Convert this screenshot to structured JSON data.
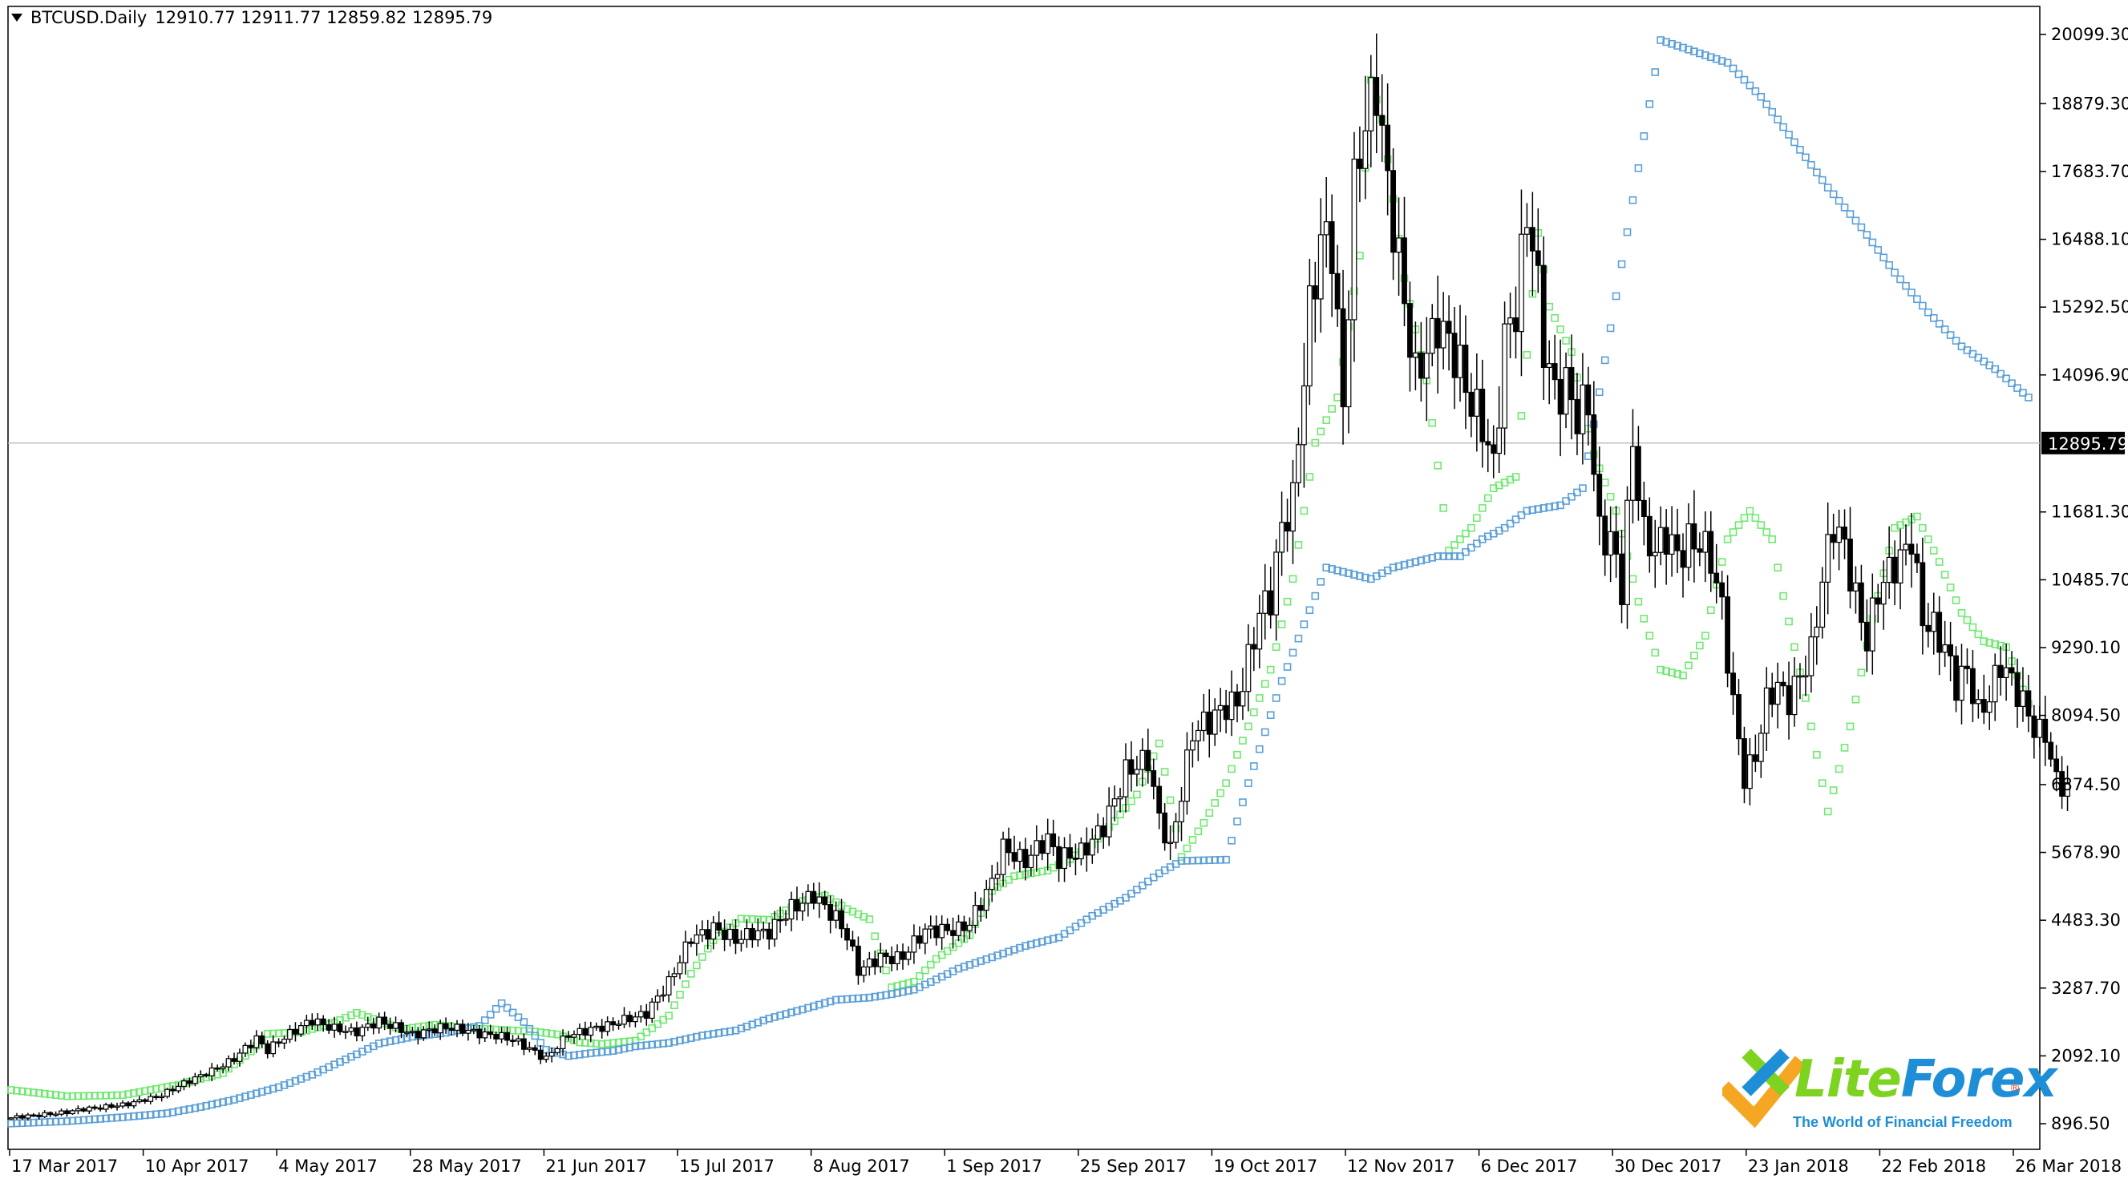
{
  "header": {
    "symbol": "BTCUSD.Daily",
    "ohlc": "12910.77 12911.77 12859.82 12895.79"
  },
  "logo": {
    "part1": "Lite",
    "part2": "Forex",
    "registered": "®",
    "tagline": "The World of Financial Freedom",
    "colors": {
      "green": "#7ed321",
      "blue": "#1e8fd6",
      "orange": "#f5a623"
    }
  },
  "chart_data": {
    "type": "candlestick",
    "title": "",
    "xlabel": "",
    "ylabel": "",
    "grid": false,
    "ylim": [
      300,
      20700
    ],
    "y_ticks": [
      "20099.30",
      "18879.30",
      "17683.70",
      "16488.10",
      "15292.50",
      "14096.90",
      "11681.30",
      "10485.70",
      "9290.10",
      "8094.50",
      "6874.50",
      "5678.90",
      "4483.30",
      "3287.70",
      "2092.10",
      "896.50"
    ],
    "current_price": "12895.79",
    "current_price_line_color": "#c0c0c0",
    "x_ticks": [
      "17 Mar 2017",
      "10 Apr 2017",
      "4 May 2017",
      "28 May 2017",
      "21 Jun 2017",
      "15 Jul 2017",
      "8 Aug 2017",
      "1 Sep 2017",
      "25 Sep 2017",
      "19 Oct 2017",
      "12 Nov 2017",
      "6 Dec 2017",
      "30 Dec 2017",
      "23 Jan 2018",
      "22 Feb 2018",
      "26 Mar 2018"
    ],
    "candle_color": "#000000",
    "price_path": [
      [
        0,
        1000
      ],
      [
        8,
        1080
      ],
      [
        14,
        1160
      ],
      [
        20,
        1230
      ],
      [
        26,
        1360
      ],
      [
        32,
        1660
      ],
      [
        36,
        1820
      ],
      [
        40,
        2050
      ],
      [
        44,
        2400
      ],
      [
        46,
        2180
      ],
      [
        50,
        2500
      ],
      [
        54,
        2720
      ],
      [
        58,
        2560
      ],
      [
        62,
        2530
      ],
      [
        66,
        2700
      ],
      [
        72,
        2480
      ],
      [
        78,
        2600
      ],
      [
        84,
        2500
      ],
      [
        90,
        2380
      ],
      [
        96,
        2050
      ],
      [
        100,
        2460
      ],
      [
        104,
        2560
      ],
      [
        110,
        2710
      ],
      [
        114,
        2850
      ],
      [
        118,
        3400
      ],
      [
        122,
        4150
      ],
      [
        126,
        4350
      ],
      [
        130,
        4150
      ],
      [
        136,
        4300
      ],
      [
        140,
        4700
      ],
      [
        144,
        4900
      ],
      [
        148,
        4550
      ],
      [
        150,
        4200
      ],
      [
        152,
        3600
      ],
      [
        156,
        3820
      ],
      [
        160,
        3850
      ],
      [
        164,
        4300
      ],
      [
        168,
        4300
      ],
      [
        172,
        4420
      ],
      [
        176,
        5150
      ],
      [
        178,
        5750
      ],
      [
        182,
        5550
      ],
      [
        186,
        5900
      ],
      [
        188,
        5560
      ],
      [
        192,
        5700
      ],
      [
        196,
        6100
      ],
      [
        200,
        7100
      ],
      [
        204,
        7350
      ],
      [
        206,
        6250
      ],
      [
        208,
        5700
      ],
      [
        212,
        7800
      ],
      [
        216,
        8100
      ],
      [
        220,
        8300
      ],
      [
        224,
        9900
      ],
      [
        226,
        10200
      ],
      [
        228,
        11400
      ],
      [
        230,
        11800
      ],
      [
        233,
        15300
      ],
      [
        235,
        16500
      ],
      [
        237,
        16400
      ],
      [
        239,
        13500
      ],
      [
        241,
        17300
      ],
      [
        243,
        18600
      ],
      [
        245,
        19300
      ],
      [
        247,
        17400
      ],
      [
        249,
        16100
      ],
      [
        252,
        14000
      ],
      [
        256,
        15100
      ],
      [
        260,
        14200
      ],
      [
        262,
        13600
      ],
      [
        264,
        13200
      ],
      [
        266,
        12500
      ],
      [
        268,
        14800
      ],
      [
        270,
        15200
      ],
      [
        272,
        16900
      ],
      [
        273,
        16500
      ],
      [
        275,
        14600
      ],
      [
        277,
        13800
      ],
      [
        279,
        14000
      ],
      [
        281,
        13300
      ],
      [
        283,
        13600
      ],
      [
        285,
        11300
      ],
      [
        287,
        11200
      ],
      [
        289,
        10400
      ],
      [
        291,
        12900
      ],
      [
        293,
        11200
      ],
      [
        295,
        11000
      ],
      [
        297,
        11300
      ],
      [
        299,
        10900
      ],
      [
        301,
        11200
      ],
      [
        303,
        11100
      ],
      [
        305,
        10800
      ],
      [
        307,
        10000
      ],
      [
        309,
        8300
      ],
      [
        311,
        7000
      ],
      [
        313,
        7400
      ],
      [
        315,
        8300
      ],
      [
        317,
        8600
      ],
      [
        319,
        8400
      ],
      [
        321,
        8800
      ],
      [
        323,
        9200
      ],
      [
        325,
        10500
      ],
      [
        327,
        11400
      ],
      [
        329,
        11100
      ],
      [
        331,
        10200
      ],
      [
        333,
        9400
      ],
      [
        335,
        10300
      ],
      [
        337,
        10600
      ],
      [
        339,
        10800
      ],
      [
        341,
        11300
      ],
      [
        343,
        9800
      ],
      [
        345,
        9600
      ],
      [
        347,
        9300
      ],
      [
        349,
        8600
      ],
      [
        351,
        8900
      ],
      [
        353,
        8200
      ],
      [
        355,
        8400
      ],
      [
        357,
        9000
      ],
      [
        359,
        8700
      ],
      [
        361,
        8300
      ],
      [
        363,
        7900
      ],
      [
        365,
        7800
      ],
      [
        367,
        6900
      ],
      [
        369,
        6800
      ]
    ],
    "psar_bull_color": "#6fe86f",
    "psar_bear_color": "#5a9fd8",
    "psar_bull": [
      [
        0,
        1490
      ],
      [
        10,
        1380
      ],
      [
        20,
        1400
      ],
      [
        30,
        1580
      ],
      [
        38,
        1790
      ],
      [
        43,
        2170
      ],
      [
        46,
        2480
      ],
      [
        52,
        2510
      ],
      [
        58,
        2680
      ],
      [
        62,
        2850
      ],
      [
        70,
        2560
      ],
      [
        76,
        2640
      ],
      [
        82,
        2580
      ],
      [
        88,
        2550
      ],
      [
        94,
        2520
      ],
      [
        98,
        2470
      ],
      [
        102,
        2330
      ],
      [
        106,
        2300
      ],
      [
        112,
        2360
      ],
      [
        118,
        2800
      ],
      [
        122,
        3540
      ],
      [
        126,
        4130
      ],
      [
        131,
        4510
      ],
      [
        136,
        4490
      ],
      [
        142,
        4820
      ],
      [
        146,
        4920
      ],
      [
        150,
        4680
      ],
      [
        154,
        4500
      ],
      [
        158,
        3300
      ],
      [
        162,
        3400
      ],
      [
        166,
        3800
      ],
      [
        172,
        4220
      ],
      [
        176,
        5000
      ],
      [
        180,
        5260
      ],
      [
        186,
        5360
      ],
      [
        190,
        5560
      ],
      [
        194,
        5820
      ],
      [
        198,
        6230
      ],
      [
        202,
        6700
      ],
      [
        206,
        7600
      ],
      [
        210,
        5600
      ],
      [
        214,
        6200
      ],
      [
        218,
        6900
      ],
      [
        222,
        7900
      ],
      [
        226,
        8900
      ],
      [
        230,
        10500
      ],
      [
        234,
        12900
      ],
      [
        238,
        13700
      ],
      [
        242,
        16200
      ],
      [
        244,
        19300
      ],
      [
        246,
        18600
      ],
      [
        250,
        15800
      ],
      [
        254,
        14000
      ],
      [
        258,
        11000
      ],
      [
        262,
        11400
      ],
      [
        266,
        12100
      ],
      [
        270,
        12300
      ],
      [
        274,
        16600
      ],
      [
        276,
        15300
      ],
      [
        280,
        14500
      ],
      [
        284,
        12700
      ],
      [
        288,
        11700
      ],
      [
        292,
        10100
      ],
      [
        296,
        8900
      ],
      [
        300,
        8800
      ],
      [
        304,
        9500
      ],
      [
        306,
        10400
      ],
      [
        308,
        11200
      ],
      [
        312,
        11700
      ],
      [
        316,
        11200
      ],
      [
        318,
        10200
      ],
      [
        322,
        8400
      ],
      [
        326,
        6400
      ],
      [
        330,
        7900
      ],
      [
        334,
        9800
      ],
      [
        338,
        11400
      ],
      [
        342,
        11600
      ],
      [
        346,
        10800
      ],
      [
        350,
        9900
      ],
      [
        354,
        9400
      ],
      [
        358,
        9300
      ],
      [
        362,
        8300
      ]
    ],
    "psar_bear": [
      [
        0,
        900
      ],
      [
        10,
        940
      ],
      [
        20,
        1010
      ],
      [
        28,
        1080
      ],
      [
        34,
        1190
      ],
      [
        40,
        1320
      ],
      [
        48,
        1540
      ],
      [
        54,
        1760
      ],
      [
        58,
        1940
      ],
      [
        62,
        2120
      ],
      [
        66,
        2310
      ],
      [
        72,
        2430
      ],
      [
        78,
        2500
      ],
      [
        84,
        2620
      ],
      [
        88,
        3020
      ],
      [
        92,
        2690
      ],
      [
        96,
        2200
      ],
      [
        100,
        2090
      ],
      [
        104,
        2140
      ],
      [
        108,
        2180
      ],
      [
        112,
        2260
      ],
      [
        118,
        2320
      ],
      [
        124,
        2450
      ],
      [
        130,
        2540
      ],
      [
        136,
        2750
      ],
      [
        142,
        2910
      ],
      [
        148,
        3080
      ],
      [
        154,
        3120
      ],
      [
        158,
        3180
      ],
      [
        162,
        3260
      ],
      [
        166,
        3440
      ],
      [
        170,
        3630
      ],
      [
        176,
        3830
      ],
      [
        182,
        4030
      ],
      [
        188,
        4180
      ],
      [
        194,
        4560
      ],
      [
        200,
        4880
      ],
      [
        206,
        5310
      ],
      [
        210,
        5530
      ],
      [
        214,
        5540
      ],
      [
        218,
        5550
      ],
      [
        222,
        6900
      ],
      [
        228,
        8700
      ],
      [
        236,
        10700
      ],
      [
        244,
        10500
      ],
      [
        248,
        10700
      ],
      [
        256,
        10900
      ],
      [
        260,
        10900
      ],
      [
        264,
        11200
      ],
      [
        268,
        11400
      ],
      [
        272,
        11700
      ],
      [
        278,
        11800
      ],
      [
        282,
        12100
      ],
      [
        296,
        20000
      ],
      [
        302,
        19800
      ],
      [
        308,
        19600
      ],
      [
        314,
        19000
      ],
      [
        320,
        18200
      ],
      [
        326,
        17400
      ],
      [
        332,
        16700
      ],
      [
        338,
        15900
      ],
      [
        344,
        15200
      ],
      [
        350,
        14600
      ],
      [
        356,
        14200
      ],
      [
        362,
        13700
      ]
    ]
  }
}
